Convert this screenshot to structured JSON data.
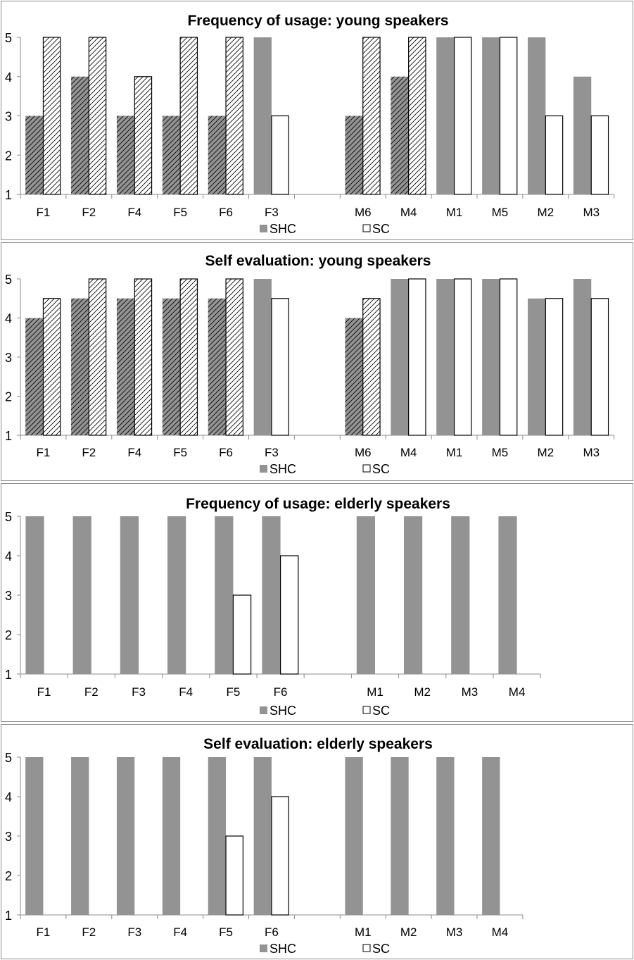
{
  "chart_data": [
    {
      "type": "bar",
      "title": "Frequency of usage: young speakers",
      "categories": [
        "F1",
        "F2",
        "F4",
        "F5",
        "F6",
        "F3",
        "",
        "M6",
        "M4",
        "M1",
        "M5",
        "M2",
        "M3"
      ],
      "series": [
        {
          "name": "SHC",
          "values": [
            3,
            4,
            3,
            3,
            3,
            5,
            null,
            3,
            4,
            5,
            5,
            5,
            4
          ]
        },
        {
          "name": "SC",
          "values": [
            5,
            5,
            4,
            5,
            5,
            3,
            null,
            5,
            5,
            5,
            5,
            3,
            3
          ]
        }
      ],
      "hatched_categories": [
        "F1",
        "F2",
        "F4",
        "F5",
        "F6",
        "M6",
        "M4"
      ],
      "ylim": [
        1,
        5
      ],
      "yticks": [
        "1",
        "2",
        "3",
        "4",
        "5"
      ],
      "legend": "bottom",
      "xlabel": "",
      "ylabel": ""
    },
    {
      "type": "bar",
      "title": "Self evaluation: young speakers",
      "categories": [
        "F1",
        "F2",
        "F4",
        "F5",
        "F6",
        "F3",
        "",
        "M6",
        "M4",
        "M1",
        "M5",
        "M2",
        "M3"
      ],
      "series": [
        {
          "name": "SHC",
          "values": [
            4,
            4.5,
            4.5,
            4.5,
            4.5,
            5,
            null,
            4,
            5,
            5,
            5,
            4.5,
            5
          ]
        },
        {
          "name": "SC",
          "values": [
            4.5,
            5,
            5,
            5,
            5,
            4.5,
            null,
            4.5,
            5,
            5,
            5,
            4.5,
            4.5
          ]
        }
      ],
      "hatched_categories": [
        "F1",
        "F2",
        "F4",
        "F5",
        "F6",
        "M6"
      ],
      "ylim": [
        1,
        5
      ],
      "yticks": [
        "1",
        "2",
        "3",
        "4",
        "5"
      ],
      "legend": "bottom",
      "xlabel": "",
      "ylabel": ""
    },
    {
      "type": "bar",
      "title": "Frequency of usage: elderly speakers",
      "categories": [
        "F1",
        "F2",
        "F3",
        "F4",
        "F5",
        "F6",
        "",
        "M1",
        "M2",
        "M3",
        "M4"
      ],
      "series": [
        {
          "name": "SHC",
          "values": [
            5,
            5,
            5,
            5,
            5,
            5,
            null,
            5,
            5,
            5,
            5
          ]
        },
        {
          "name": "SC",
          "values": [
            null,
            null,
            null,
            null,
            3,
            4,
            null,
            null,
            null,
            null,
            null
          ]
        }
      ],
      "hatched_categories": [],
      "ylim": [
        1,
        5
      ],
      "yticks": [
        "1",
        "2",
        "3",
        "4",
        "5"
      ],
      "legend": "bottom",
      "xlabel": "",
      "ylabel": ""
    },
    {
      "type": "bar",
      "title": "Self evaluation: elderly speakers",
      "categories": [
        "F1",
        "F2",
        "F3",
        "F4",
        "F5",
        "F6",
        "",
        "M1",
        "M2",
        "M3",
        "M4"
      ],
      "series": [
        {
          "name": "SHC",
          "values": [
            5,
            5,
            5,
            5,
            5,
            5,
            null,
            5,
            5,
            5,
            5
          ]
        },
        {
          "name": "SC",
          "values": [
            null,
            null,
            null,
            null,
            3,
            4,
            null,
            null,
            null,
            null,
            null
          ]
        }
      ],
      "hatched_categories": [],
      "ylim": [
        1,
        5
      ],
      "yticks": [
        "1",
        "2",
        "3",
        "4",
        "5"
      ],
      "legend": "bottom",
      "xlabel": "",
      "ylabel": ""
    }
  ],
  "colors": {
    "shc": "#939393",
    "sc": "#ffffff",
    "outline": "#000000",
    "axis": "#8c8c8c"
  }
}
